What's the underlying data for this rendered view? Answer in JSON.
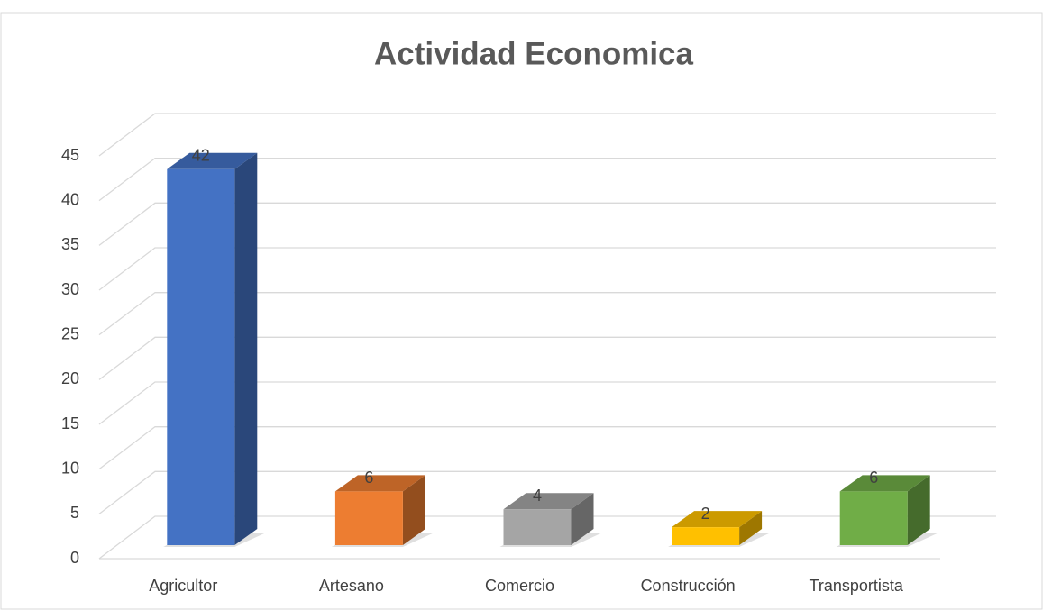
{
  "chart_data": {
    "type": "bar3d",
    "title": "Actividad Economica",
    "categories": [
      "Agricultor",
      "Artesano",
      "Comercio",
      "Construcción",
      "Transportista"
    ],
    "values": [
      42,
      6,
      4,
      2,
      6
    ],
    "colors": [
      "#4472c4",
      "#ed7d31",
      "#a5a5a5",
      "#ffc000",
      "#70ad47"
    ],
    "ylim": [
      0,
      45
    ],
    "yticks": [
      0,
      5,
      10,
      15,
      20,
      25,
      30,
      35,
      40,
      45
    ],
    "grid": true
  }
}
